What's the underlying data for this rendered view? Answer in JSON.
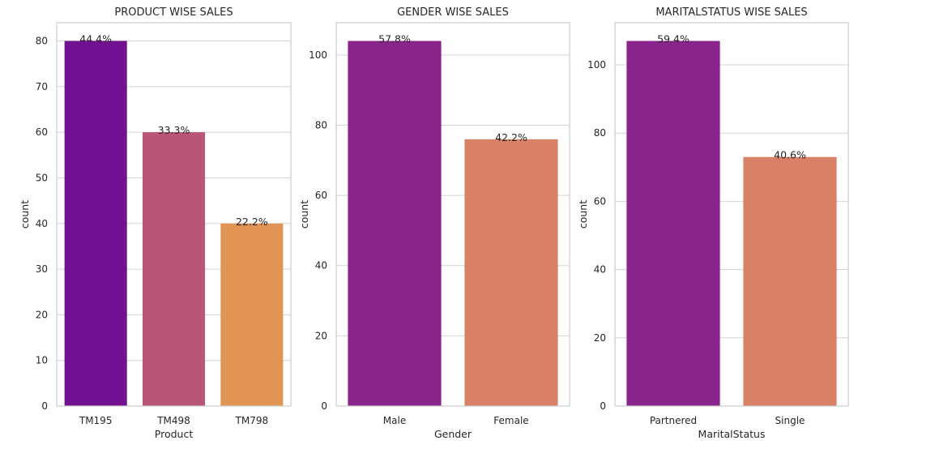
{
  "chart_data": [
    {
      "type": "bar",
      "title": "PRODUCT WISE SALES",
      "xlabel": "Product",
      "ylabel": "count",
      "categories": [
        "TM195",
        "TM498",
        "TM798"
      ],
      "values": [
        80,
        60,
        40
      ],
      "labels": [
        "44.4%",
        "33.3%",
        "22.2%"
      ],
      "colors": [
        "#721293",
        "#b95677",
        "#e29455"
      ],
      "ylim": [
        0,
        84
      ],
      "yticks": [
        "0",
        "10",
        "20",
        "30",
        "40",
        "50",
        "60",
        "70",
        "80"
      ],
      "grid": true
    },
    {
      "type": "bar",
      "title": "GENDER WISE SALES",
      "xlabel": "Gender",
      "ylabel": "count",
      "categories": [
        "Male",
        "Female"
      ],
      "values": [
        104,
        76
      ],
      "labels": [
        "57.8%",
        "42.2%"
      ],
      "colors": [
        "#89248c",
        "#d98166"
      ],
      "ylim": [
        0,
        109.2
      ],
      "yticks": [
        "0",
        "20",
        "40",
        "60",
        "80",
        "100"
      ],
      "grid": true
    },
    {
      "type": "bar",
      "title": "MARITALSTATUS WISE SALES",
      "xlabel": "MaritalStatus",
      "ylabel": "count",
      "categories": [
        "Partnered",
        "Single"
      ],
      "values": [
        107,
        73
      ],
      "labels": [
        "59.4%",
        "40.6%"
      ],
      "colors": [
        "#89248c",
        "#d98166"
      ],
      "ylim": [
        0,
        112.35
      ],
      "yticks": [
        "0",
        "20",
        "40",
        "60",
        "80",
        "100"
      ],
      "grid": true
    }
  ]
}
